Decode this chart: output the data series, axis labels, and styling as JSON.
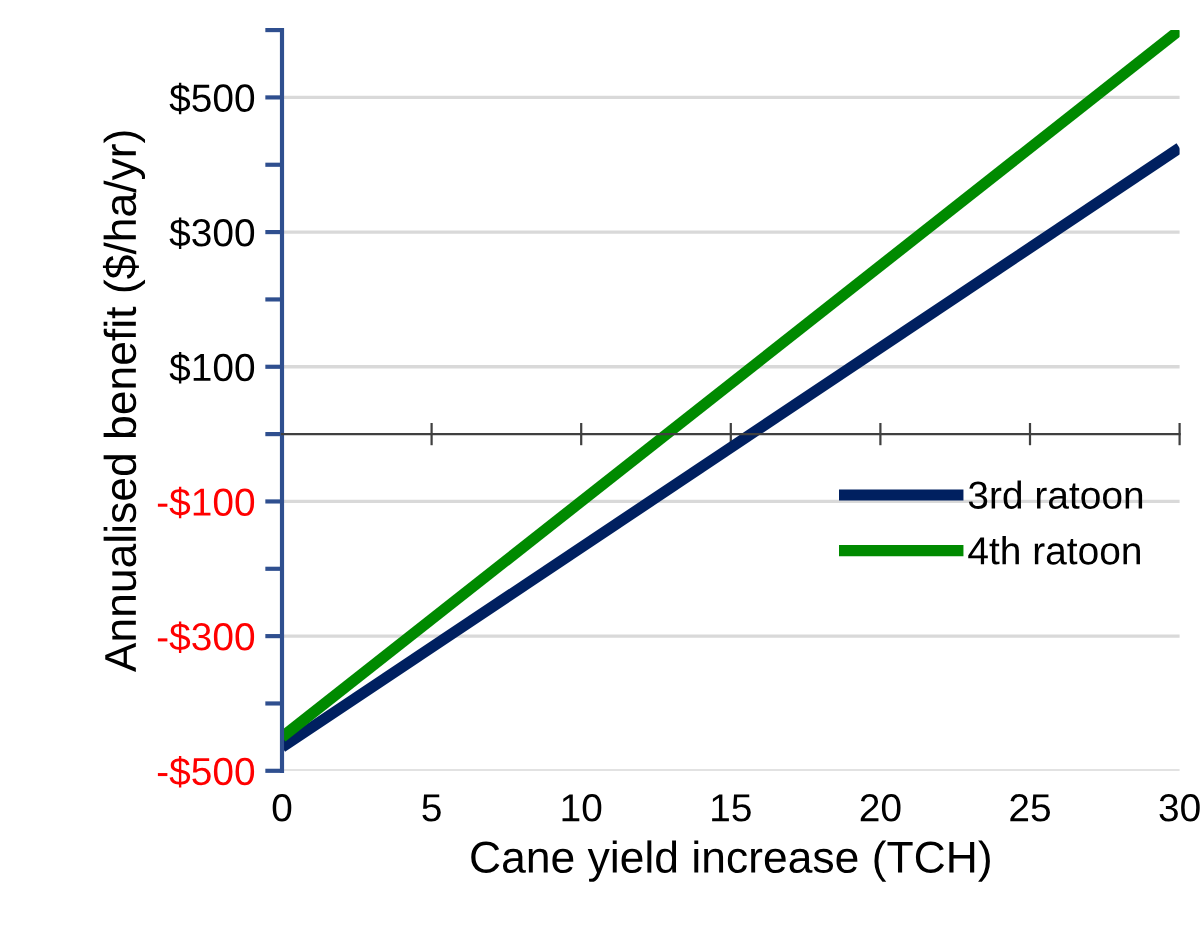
{
  "chart_data": {
    "type": "line",
    "xlabel": "Cane yield increase (TCH)",
    "ylabel": "Annualised benefit ($/ha/yr)",
    "x": [
      0,
      30
    ],
    "series": [
      {
        "name": "3rd ratoon",
        "color": "#002060",
        "values": [
          -465,
          425
        ]
      },
      {
        "name": "4th ratoon",
        "color": "#008a00",
        "values": [
          -450,
          600
        ]
      }
    ],
    "xlim": [
      0,
      30
    ],
    "xticks": [
      0,
      5,
      10,
      15,
      20,
      25,
      30
    ],
    "ylim": [
      -500,
      600
    ],
    "yticks": [
      {
        "value": -500,
        "label": "-$500"
      },
      {
        "value": -400,
        "label": null
      },
      {
        "value": -300,
        "label": "-$300"
      },
      {
        "value": -200,
        "label": null
      },
      {
        "value": -100,
        "label": "-$100"
      },
      {
        "value": 0,
        "label": null
      },
      {
        "value": 100,
        "label": "$100"
      },
      {
        "value": 200,
        "label": null
      },
      {
        "value": 300,
        "label": "$300"
      },
      {
        "value": 400,
        "label": null
      },
      {
        "value": 500,
        "label": "$500"
      },
      {
        "value": 600,
        "label": null
      }
    ],
    "grid": "y",
    "legend": "right",
    "marker": "none",
    "line_style": "solid"
  }
}
